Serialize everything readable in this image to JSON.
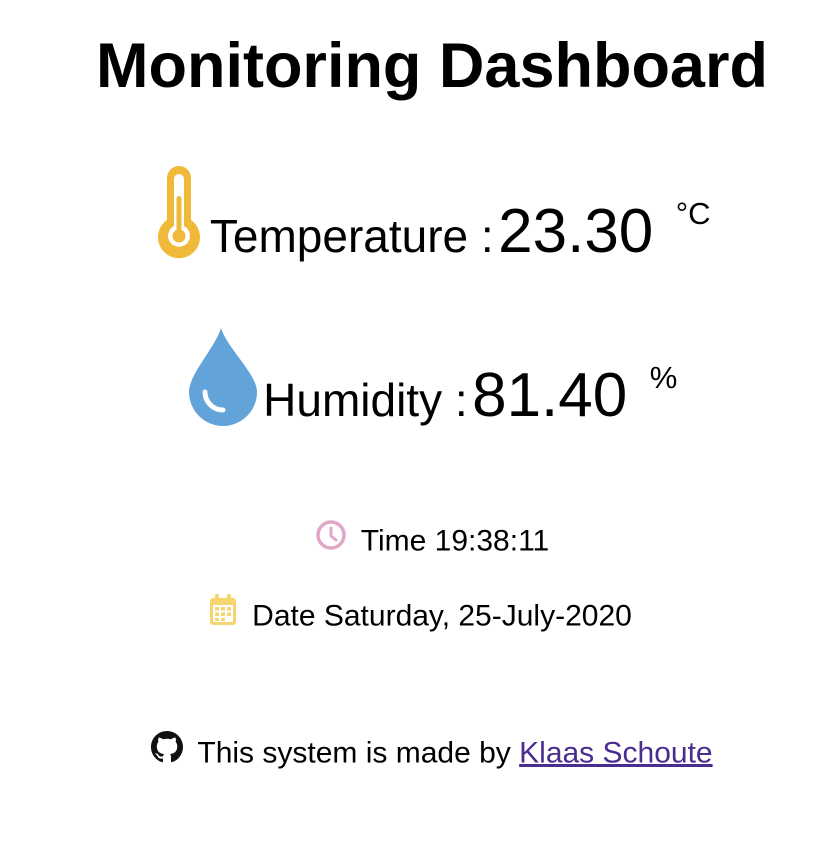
{
  "page": {
    "title": "Monitoring Dashboard"
  },
  "temperature": {
    "label": "Temperature :",
    "value": "23.30",
    "unit": "°C",
    "icon": "thermometer-icon",
    "icon_color": "#f0b93a"
  },
  "humidity": {
    "label": "Humidity :",
    "value": "81.40",
    "unit": "%",
    "icon": "water-drop-icon",
    "icon_color": "#62a4d9"
  },
  "time": {
    "text": "Time 19:38:11",
    "icon": "clock-icon",
    "icon_color": "#e0a7c6"
  },
  "date": {
    "text": "Date Saturday, 25-July-2020",
    "icon": "calendar-icon",
    "icon_color": "#f5d56e"
  },
  "footer": {
    "prefix": "This system is made by ",
    "link_text": "Klaas Schoute",
    "icon": "github-icon",
    "link_color": "#4b2c8f"
  }
}
